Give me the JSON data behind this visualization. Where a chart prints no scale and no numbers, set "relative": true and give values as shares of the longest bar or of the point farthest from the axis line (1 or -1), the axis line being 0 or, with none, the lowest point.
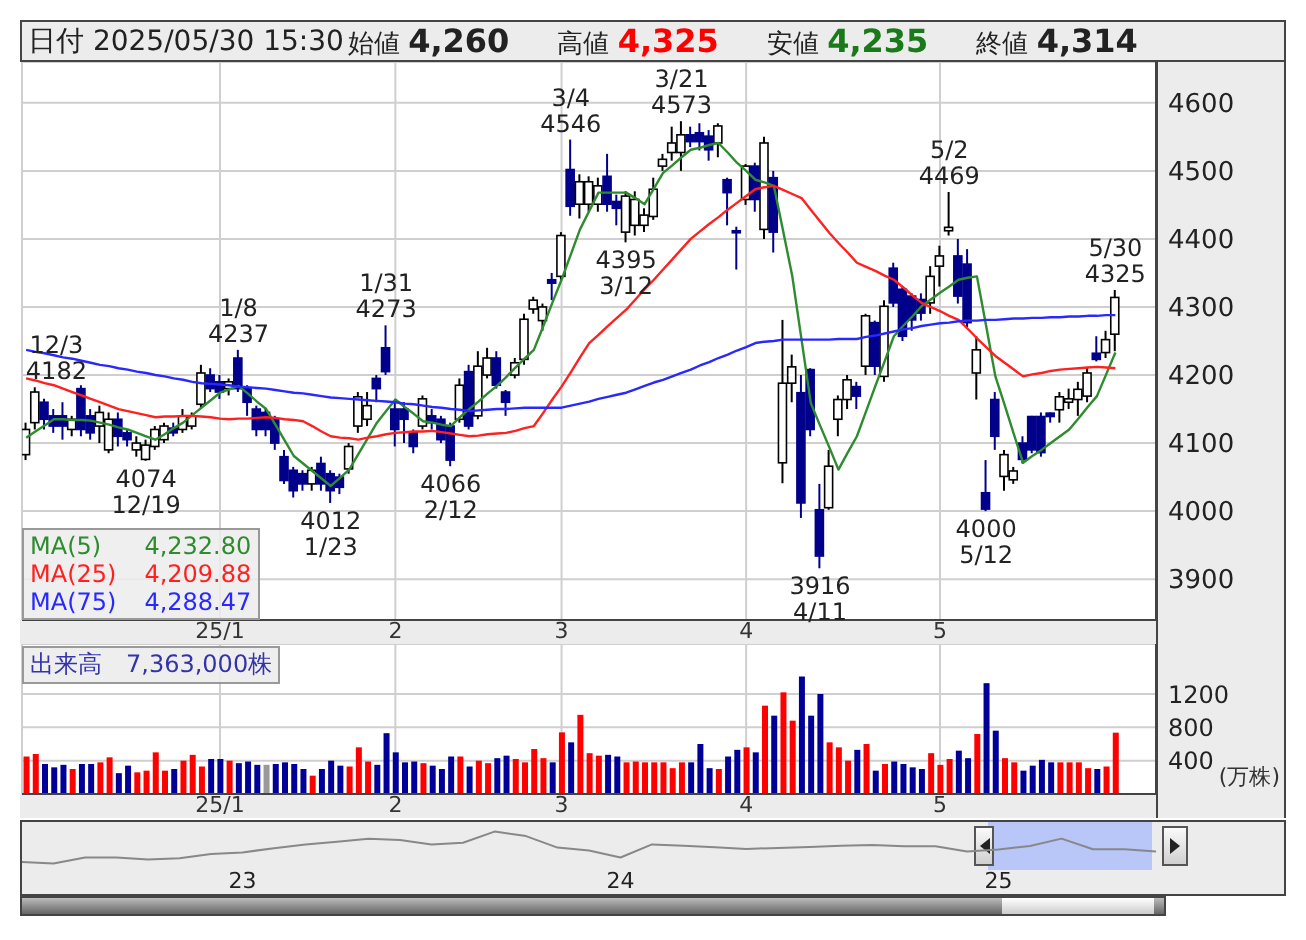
{
  "chart_data": [
    {
      "type": "candlestick",
      "title": "日付 2025/05/30 15:30",
      "annotations": [
        "始値 4,260",
        "高値 4,325",
        "安値 4,235",
        "終値 4,314",
        {
          "text": "12/3\n4182",
          "y": 4182
        },
        {
          "text": "4074\n12/19",
          "y": 4074
        },
        {
          "text": "1/8\n4237",
          "y": 4237
        },
        {
          "text": "4012\n1/23",
          "y": 4012
        },
        {
          "text": "1/31\n4273",
          "y": 4273
        },
        {
          "text": "4066\n2/12",
          "y": 4066
        },
        {
          "text": "3/4\n4546",
          "y": 4546
        },
        {
          "text": "4395\n3/12",
          "y": 4395
        },
        {
          "text": "3/21\n4573",
          "y": 4573
        },
        {
          "text": "3916\n4/11",
          "y": 3916
        },
        {
          "text": "5/2\n4469",
          "y": 4469
        },
        {
          "text": "4000\n5/12",
          "y": 4000
        },
        {
          "text": "5/30\n4325",
          "y": 4325
        }
      ],
      "categories": [
        null,
        null,
        null,
        null,
        null,
        null,
        null,
        null,
        null,
        null,
        null,
        null,
        null,
        null,
        null,
        null,
        null,
        null,
        null,
        null,
        null,
        "25/1",
        null,
        null,
        null,
        null,
        null,
        null,
        null,
        null,
        null,
        null,
        null,
        null,
        null,
        null,
        null,
        null,
        null,
        null,
        "2",
        null,
        null,
        null,
        null,
        null,
        null,
        null,
        null,
        null,
        null,
        null,
        null,
        null,
        null,
        null,
        null,
        null,
        "3",
        null,
        null,
        null,
        null,
        null,
        null,
        null,
        null,
        null,
        null,
        null,
        null,
        null,
        null,
        null,
        null,
        null,
        null,
        null,
        "4",
        null,
        null,
        null,
        null,
        null,
        null,
        null,
        null,
        null,
        null,
        null,
        null,
        null,
        null,
        null,
        null,
        null,
        null,
        null,
        null,
        "5",
        null,
        null,
        null,
        null,
        null,
        null,
        null,
        null,
        null,
        null,
        null,
        null,
        null,
        null,
        null,
        null,
        null,
        null,
        null
      ],
      "ohlc": [
        [
          4083,
          4130,
          4075,
          4120
        ],
        [
          4130,
          4182,
          4120,
          4175
        ],
        [
          4160,
          4165,
          4120,
          4135
        ],
        [
          4140,
          4150,
          4115,
          4125
        ],
        [
          4140,
          4160,
          4105,
          4125
        ],
        [
          4120,
          4140,
          4110,
          4135
        ],
        [
          4180,
          4185,
          4110,
          4120
        ],
        [
          4140,
          4150,
          4105,
          4115
        ],
        [
          4125,
          4155,
          4100,
          4145
        ],
        [
          4090,
          4145,
          4085,
          4135
        ],
        [
          4135,
          4145,
          4095,
          4110
        ],
        [
          4115,
          4120,
          4095,
          4105
        ],
        [
          4090,
          4110,
          4080,
          4100
        ],
        [
          4076,
          4105,
          4074,
          4097
        ],
        [
          4095,
          4125,
          4090,
          4120
        ],
        [
          4105,
          4130,
          4100,
          4125
        ],
        [
          4122,
          4130,
          4110,
          4115
        ],
        [
          4120,
          4150,
          4115,
          4140
        ],
        [
          4125,
          4145,
          4120,
          4140
        ],
        [
          4157,
          4215,
          4150,
          4203
        ],
        [
          4200,
          4210,
          4175,
          4180
        ],
        [
          4190,
          4200,
          4165,
          4175
        ],
        [
          4180,
          4195,
          4170,
          4190
        ],
        [
          4225,
          4237,
          4175,
          4180
        ],
        [
          4180,
          4185,
          4140,
          4160
        ],
        [
          4150,
          4155,
          4110,
          4120
        ],
        [
          4145,
          4150,
          4110,
          4120
        ],
        [
          4135,
          4140,
          4090,
          4100
        ],
        [
          4080,
          4090,
          4040,
          4045
        ],
        [
          4060,
          4065,
          4020,
          4030
        ],
        [
          4055,
          4060,
          4030,
          4040
        ],
        [
          4040,
          4065,
          4030,
          4060
        ],
        [
          4070,
          4080,
          4030,
          4040
        ],
        [
          4055,
          4060,
          4012,
          4030
        ],
        [
          4050,
          4055,
          4025,
          4035
        ],
        [
          4062,
          4100,
          4055,
          4095
        ],
        [
          4125,
          4175,
          4115,
          4168
        ],
        [
          4135,
          4175,
          4125,
          4155
        ],
        [
          4195,
          4200,
          4160,
          4180
        ],
        [
          4240,
          4273,
          4200,
          4205
        ],
        [
          4150,
          4160,
          4095,
          4120
        ],
        [
          4150,
          4160,
          4100,
          4135
        ],
        [
          4115,
          4120,
          4085,
          4095
        ],
        [
          4125,
          4170,
          4120,
          4165
        ],
        [
          4140,
          4150,
          4120,
          4130
        ],
        [
          4135,
          4140,
          4100,
          4105
        ],
        [
          4125,
          4130,
          4066,
          4075
        ],
        [
          4135,
          4195,
          4130,
          4185
        ],
        [
          4205,
          4215,
          4120,
          4125
        ],
        [
          4140,
          4235,
          4135,
          4213
        ],
        [
          4200,
          4240,
          4195,
          4225
        ],
        [
          4225,
          4235,
          4180,
          4185
        ],
        [
          4175,
          4178,
          4140,
          4160
        ],
        [
          4200,
          4225,
          4195,
          4218
        ],
        [
          4223,
          4290,
          4215,
          4282
        ],
        [
          4297,
          4315,
          4290,
          4310
        ],
        [
          4280,
          4305,
          4265,
          4300
        ],
        [
          4340,
          4350,
          4310,
          4335
        ],
        [
          4345,
          4410,
          4340,
          4405
        ],
        [
          4502,
          4546,
          4434,
          4448
        ],
        [
          4451,
          4495,
          4430,
          4484
        ],
        [
          4451,
          4492,
          4440,
          4484
        ],
        [
          4451,
          4490,
          4440,
          4478
        ],
        [
          4492,
          4525,
          4440,
          4451
        ],
        [
          4455,
          4465,
          4420,
          4445
        ],
        [
          4410,
          4470,
          4395,
          4463
        ],
        [
          4420,
          4470,
          4405,
          4458
        ],
        [
          4420,
          4445,
          4410,
          4435
        ],
        [
          4433,
          4490,
          4428,
          4473
        ],
        [
          4507,
          4525,
          4500,
          4517
        ],
        [
          4527,
          4565,
          4515,
          4541
        ],
        [
          4527,
          4573,
          4500,
          4553
        ],
        [
          4553,
          4565,
          4535,
          4543
        ],
        [
          4556,
          4570,
          4530,
          4543
        ],
        [
          4551,
          4560,
          4515,
          4531
        ],
        [
          4541,
          4570,
          4520,
          4566
        ],
        [
          4487,
          4490,
          4420,
          4468
        ],
        [
          4412,
          4418,
          4355,
          4410
        ],
        [
          4458,
          4510,
          4450,
          4507
        ],
        [
          4507,
          4512,
          4440,
          4458
        ],
        [
          4414,
          4550,
          4400,
          4541
        ],
        [
          4490,
          4500,
          4380,
          4410
        ],
        [
          4071,
          4281,
          4041,
          4188
        ],
        [
          4188,
          4230,
          4160,
          4212
        ],
        [
          4174,
          4200,
          3990,
          4012
        ],
        [
          4208,
          4210,
          4110,
          4120
        ],
        [
          4002,
          4040,
          3916,
          3934
        ],
        [
          4005,
          4090,
          4002,
          4066
        ],
        [
          4135,
          4170,
          4110,
          4164
        ],
        [
          4164,
          4200,
          4150,
          4193
        ],
        [
          4183,
          4190,
          4150,
          4169
        ],
        [
          4213,
          4290,
          4200,
          4287
        ],
        [
          4277,
          4280,
          4200,
          4213
        ],
        [
          4198,
          4310,
          4190,
          4301
        ],
        [
          4357,
          4365,
          4300,
          4306
        ],
        [
          4326,
          4330,
          4250,
          4257
        ],
        [
          4316,
          4320,
          4265,
          4281
        ],
        [
          4311,
          4320,
          4280,
          4291
        ],
        [
          4306,
          4360,
          4290,
          4345
        ],
        [
          4360,
          4390,
          4330,
          4375
        ],
        [
          4412,
          4469,
          4405,
          4417
        ],
        [
          4375,
          4400,
          4305,
          4316
        ],
        [
          4363,
          4385,
          4270,
          4277
        ],
        [
          4203,
          4257,
          4164,
          4237
        ],
        [
          4027,
          4075,
          4000,
          4003
        ],
        [
          4164,
          4175,
          4090,
          4110
        ],
        [
          4051,
          4090,
          4030,
          4083
        ],
        [
          4046,
          4065,
          4040,
          4059
        ],
        [
          4100,
          4110,
          4070,
          4076
        ],
        [
          4139,
          4140,
          4085,
          4090
        ],
        [
          4139,
          4145,
          4080,
          4086
        ],
        [
          4144,
          4145,
          4130,
          4139
        ],
        [
          4149,
          4175,
          4130,
          4168
        ],
        [
          4160,
          4180,
          4150,
          4165
        ],
        [
          4164,
          4190,
          4140,
          4179
        ],
        [
          4169,
          4210,
          4160,
          4203
        ],
        [
          4232,
          4257,
          4220,
          4223
        ],
        [
          4233,
          4265,
          4225,
          4252
        ],
        [
          4260,
          4325,
          4235,
          4314
        ]
      ],
      "series": [
        {
          "name": "MA(5) 4,232.80",
          "type": "line",
          "color": "#2e8b2e",
          "values": [
            4108,
            4117,
            4126,
            4135,
            4135,
            4134,
            4134,
            4133,
            4130,
            4127,
            4123,
            4120,
            4115,
            4110,
            4105,
            4113,
            4122,
            4130,
            4141,
            4152,
            4163,
            4174,
            4179,
            4184,
            4173,
            4161,
            4150,
            4127,
            4104,
            4081,
            4070,
            4059,
            4048,
            4037,
            4049,
            4061,
            4084,
            4107,
            4130,
            4147,
            4164,
            4153,
            4143,
            4132,
            4130,
            4127,
            4125,
            4138,
            4150,
            4161,
            4173,
            4184,
            4197,
            4211,
            4224,
            4237,
            4271,
            4306,
            4340,
            4377,
            4414,
            4441,
            4468,
            4468,
            4468,
            4468,
            4460,
            4451,
            4474,
            4497,
            4508,
            4520,
            4531,
            4534,
            4538,
            4541,
            4527,
            4512,
            4500,
            4487,
            4483,
            4478,
            4412,
            4345,
            4252,
            4159,
            4126,
            4094,
            4061,
            4086,
            4110,
            4147,
            4184,
            4220,
            4257,
            4272,
            4286,
            4301,
            4311,
            4321,
            4330,
            4340,
            4343,
            4345,
            4272,
            4198,
            4156,
            4113,
            4071,
            4081,
            4090,
            4100,
            4110,
            4120,
            4136,
            4153,
            4169,
            4201,
            4233
          ]
        },
        {
          "name": "MA(25) 4,209.88",
          "type": "line",
          "color": "#ff2020",
          "values": [
            4195,
            4192,
            4188,
            4185,
            4180,
            4175,
            4170,
            4165,
            4160,
            4155,
            4150,
            4147,
            4144,
            4141,
            4138,
            4139,
            4139,
            4140,
            4140,
            4139,
            4138,
            4136,
            4135,
            4136,
            4136,
            4137,
            4138,
            4137,
            4135,
            4134,
            4132,
            4125,
            4117,
            4110,
            4108,
            4107,
            4105,
            4108,
            4110,
            4113,
            4115,
            4116,
            4117,
            4117,
            4118,
            4116,
            4114,
            4112,
            4110,
            4111,
            4113,
            4114,
            4115,
            4118,
            4122,
            4125,
            4144,
            4164,
            4183,
            4204,
            4226,
            4247,
            4259,
            4272,
            4284,
            4296,
            4311,
            4326,
            4340,
            4355,
            4370,
            4385,
            4400,
            4411,
            4422,
            4432,
            4443,
            4453,
            4463,
            4473,
            4476,
            4478,
            4472,
            4466,
            4460,
            4443,
            4426,
            4409,
            4394,
            4380,
            4365,
            4359,
            4353,
            4346,
            4340,
            4329,
            4317,
            4306,
            4300,
            4294,
            4287,
            4281,
            4268,
            4254,
            4241,
            4228,
            4218,
            4208,
            4198,
            4201,
            4203,
            4206,
            4208,
            4209,
            4210,
            4211,
            4212,
            4211,
            4210
          ]
        },
        {
          "name": "MA(75) 4,288.47",
          "type": "line",
          "color": "#2828ff",
          "values": [
            4237,
            4234,
            4232,
            4229,
            4226,
            4224,
            4221,
            4218,
            4215,
            4213,
            4210,
            4208,
            4205,
            4203,
            4200,
            4198,
            4195,
            4193,
            4190,
            4188,
            4187,
            4186,
            4185,
            4183,
            4182,
            4181,
            4180,
            4178,
            4176,
            4174,
            4173,
            4171,
            4169,
            4167,
            4166,
            4165,
            4164,
            4163,
            4162,
            4161,
            4160,
            4158,
            4157,
            4155,
            4153,
            4152,
            4150,
            4149,
            4147,
            4148,
            4149,
            4150,
            4150,
            4151,
            4152,
            4152,
            4152,
            4152,
            4152,
            4155,
            4158,
            4161,
            4165,
            4168,
            4171,
            4174,
            4179,
            4184,
            4189,
            4193,
            4198,
            4203,
            4208,
            4214,
            4219,
            4225,
            4230,
            4236,
            4241,
            4247,
            4249,
            4250,
            4252,
            4252,
            4252,
            4252,
            4252,
            4252,
            4253,
            4253,
            4253,
            4256,
            4258,
            4261,
            4264,
            4267,
            4269,
            4272,
            4274,
            4276,
            4277,
            4279,
            4280,
            4280,
            4281,
            4281,
            4282,
            4283,
            4283,
            4284,
            4284,
            4285,
            4285,
            4286,
            4286,
            4287,
            4287,
            4288,
            4288
          ]
        }
      ],
      "ylim": [
        3840,
        4660
      ],
      "yticks": [
        3900,
        4000,
        4100,
        4200,
        4300,
        4400,
        4500,
        4600
      ],
      "grid": true,
      "legend": "bottom left"
    },
    {
      "type": "bar",
      "title": "出来高　7,363,000株",
      "ylabel": "(万株)",
      "categories": [
        null,
        null,
        null,
        null,
        null,
        null,
        null,
        null,
        null,
        null,
        null,
        null,
        null,
        null,
        null,
        null,
        null,
        null,
        null,
        null,
        null,
        "25/1",
        null,
        null,
        null,
        null,
        null,
        null,
        null,
        null,
        null,
        null,
        null,
        null,
        null,
        null,
        null,
        null,
        null,
        null,
        "2",
        null,
        null,
        null,
        null,
        null,
        null,
        null,
        null,
        null,
        null,
        null,
        null,
        null,
        null,
        null,
        null,
        null,
        "3",
        null,
        null,
        null,
        null,
        null,
        null,
        null,
        null,
        null,
        null,
        null,
        null,
        null,
        null,
        null,
        null,
        null,
        null,
        null,
        "4",
        null,
        null,
        null,
        null,
        null,
        null,
        null,
        null,
        null,
        null,
        null,
        null,
        null,
        null,
        null,
        null,
        null,
        null,
        null,
        null,
        "5",
        null,
        null,
        null,
        null,
        null,
        null,
        null,
        null,
        null,
        null,
        null,
        null,
        null,
        null,
        null,
        null,
        null,
        null,
        null
      ],
      "values": [
        450,
        480,
        360,
        320,
        350,
        300,
        360,
        360,
        380,
        440,
        250,
        340,
        260,
        280,
        500,
        280,
        300,
        400,
        470,
        330,
        420,
        420,
        400,
        370,
        390,
        350,
        350,
        360,
        380,
        360,
        300,
        220,
        300,
        400,
        340,
        330,
        560,
        390,
        350,
        730,
        500,
        380,
        390,
        370,
        340,
        300,
        450,
        450,
        330,
        400,
        370,
        430,
        460,
        420,
        380,
        540,
        430,
        380,
        740,
        620,
        950,
        490,
        460,
        470,
        450,
        380,
        390,
        380,
        380,
        380,
        310,
        380,
        380,
        600,
        310,
        300,
        450,
        530,
        560,
        500,
        1060,
        940,
        1220,
        880,
        1410,
        940,
        1200,
        620,
        560,
        400,
        530,
        600,
        280,
        360,
        390,
        360,
        320,
        300,
        490,
        350,
        420,
        520,
        430,
        720,
        1330,
        760,
        430,
        380,
        280,
        340,
        410,
        380,
        380,
        380,
        380,
        310,
        300,
        330,
        736
      ],
      "colors": [
        "#ff0000",
        "#ff0000",
        "#000099",
        "#000099",
        "#000099",
        "#ff0000",
        "#000099",
        "#000099",
        "#ff0000",
        "#ff0000",
        "#000099",
        "#000099",
        "#ff0000",
        "#ff0000",
        "#ff0000",
        "#ff0000",
        "#000099",
        "#ff0000",
        "#ff0000",
        "#ff0000",
        "#000099",
        "#000099",
        "#ff0000",
        "#000099",
        "#000099",
        "#000099",
        "#999999",
        "#000099",
        "#000099",
        "#000099",
        "#000099",
        "#ff0000",
        "#000099",
        "#000099",
        "#000099",
        "#ff0000",
        "#ff0000",
        "#ff0000",
        "#000099",
        "#000099",
        "#000099",
        "#000099",
        "#000099",
        "#ff0000",
        "#000099",
        "#000099",
        "#000099",
        "#ff0000",
        "#000099",
        "#ff0000",
        "#ff0000",
        "#000099",
        "#000099",
        "#ff0000",
        "#ff0000",
        "#ff0000",
        "#ff0000",
        "#000099",
        "#ff0000",
        "#000099",
        "#ff0000",
        "#ff0000",
        "#ff0000",
        "#000099",
        "#000099",
        "#ff0000",
        "#ff0000",
        "#ff0000",
        "#ff0000",
        "#ff0000",
        "#ff0000",
        "#ff0000",
        "#000099",
        "#000099",
        "#000099",
        "#ff0000",
        "#000099",
        "#000099",
        "#ff0000",
        "#000099",
        "#ff0000",
        "#000099",
        "#ff0000",
        "#ff0000",
        "#000099",
        "#000099",
        "#000099",
        "#ff0000",
        "#ff0000",
        "#ff0000",
        "#000099",
        "#ff0000",
        "#000099",
        "#ff0000",
        "#000099",
        "#000099",
        "#000099",
        "#000099",
        "#ff0000",
        "#ff0000",
        "#ff0000",
        "#000099",
        "#000099",
        "#ff0000",
        "#000099",
        "#000099",
        "#ff0000",
        "#ff0000",
        "#000099",
        "#000099",
        "#000099",
        "#000099",
        "#ff0000",
        "#ff0000",
        "#ff0000",
        "#ff0000",
        "#000099",
        "#ff0000",
        "#ff0000"
      ],
      "ylim": [
        0,
        1800
      ],
      "yticks": [
        400,
        800,
        1200
      ],
      "grid": true
    },
    {
      "type": "line",
      "relative": true,
      "color": "#888888",
      "tick_labels": "x",
      "categories": [
        null,
        null,
        null,
        null,
        null,
        null,
        null,
        "23",
        null,
        null,
        null,
        null,
        null,
        null,
        null,
        null,
        null,
        null,
        null,
        "24",
        null,
        null,
        null,
        null,
        null,
        null,
        null,
        null,
        null,
        null,
        null,
        "25",
        null,
        null,
        null,
        null,
        null
      ],
      "values": [
        0.05,
        0,
        0.19,
        0.19,
        0.13,
        0.17,
        0.3,
        0.35,
        0.48,
        0.6,
        0.68,
        0.78,
        0.74,
        0.6,
        0.65,
        1,
        0.86,
        0.5,
        0.41,
        0.19,
        0.6,
        0.56,
        0.51,
        0.46,
        0.49,
        0.52,
        0.56,
        0.58,
        0.54,
        0.54,
        0.38,
        0.44,
        0.55,
        0.78,
        0.45,
        0.45,
        0.38
      ]
    }
  ]
}
